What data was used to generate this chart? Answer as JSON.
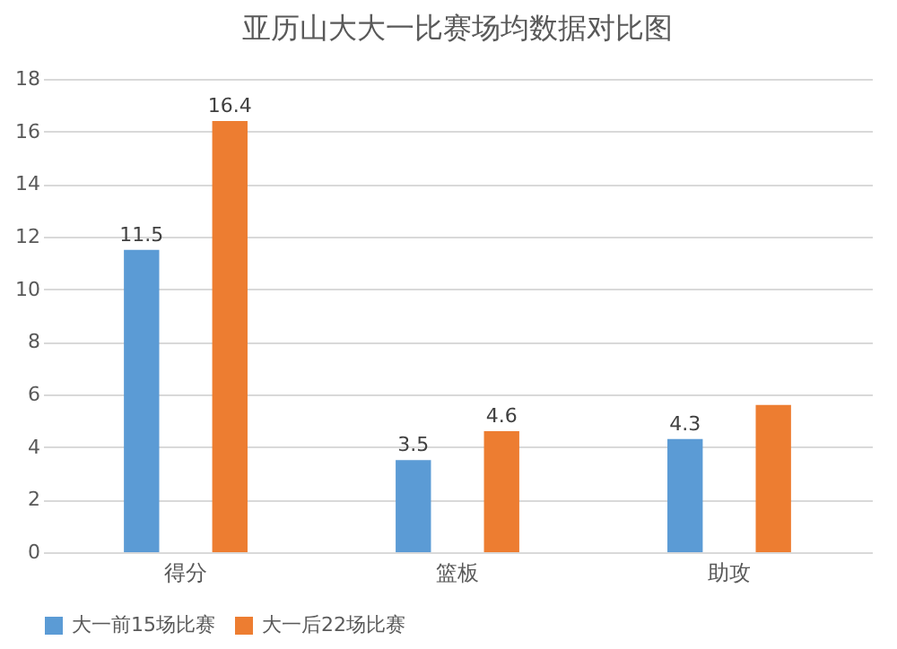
{
  "chart_data": {
    "type": "bar",
    "title": "亚历山大大一比赛场均数据对比图",
    "categories": [
      "得分",
      "篮板",
      "助攻"
    ],
    "series": [
      {
        "name": "大一前15场比赛",
        "color": "#5b9bd5",
        "values": [
          11.5,
          3.5,
          4.3
        ],
        "value_labels": [
          "11.5",
          "3.5",
          "4.3"
        ]
      },
      {
        "name": "大一后22场比赛",
        "color": "#ed7d31",
        "values": [
          16.4,
          4.6,
          5.6
        ],
        "value_labels": [
          "16.4",
          "4.6",
          null
        ]
      }
    ],
    "ylim": [
      0,
      18
    ],
    "yticks": [
      0,
      2,
      4,
      6,
      8,
      10,
      12,
      14,
      16,
      18
    ],
    "grid": "y",
    "legend": "bottom"
  }
}
